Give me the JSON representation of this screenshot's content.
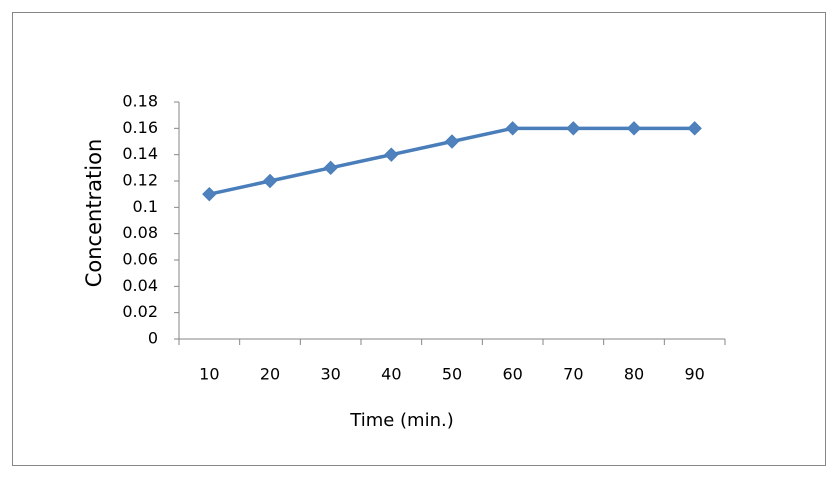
{
  "chart_data": {
    "type": "line",
    "x_label": "Time (min.)",
    "y_label": "Concentration",
    "categories": [
      "10",
      "20",
      "30",
      "40",
      "50",
      "60",
      "70",
      "80",
      "90"
    ],
    "series": [
      {
        "name": "Concentration",
        "color": "#4a7ebb",
        "values": [
          0.11,
          0.12,
          0.13,
          0.14,
          0.15,
          0.16,
          0.16,
          0.16,
          0.16
        ]
      }
    ],
    "ylim": [
      0,
      0.18
    ],
    "yticks": [
      0,
      0.02,
      0.04,
      0.06,
      0.08,
      0.1,
      0.12,
      0.14,
      0.16,
      0.18
    ],
    "grid": false
  }
}
